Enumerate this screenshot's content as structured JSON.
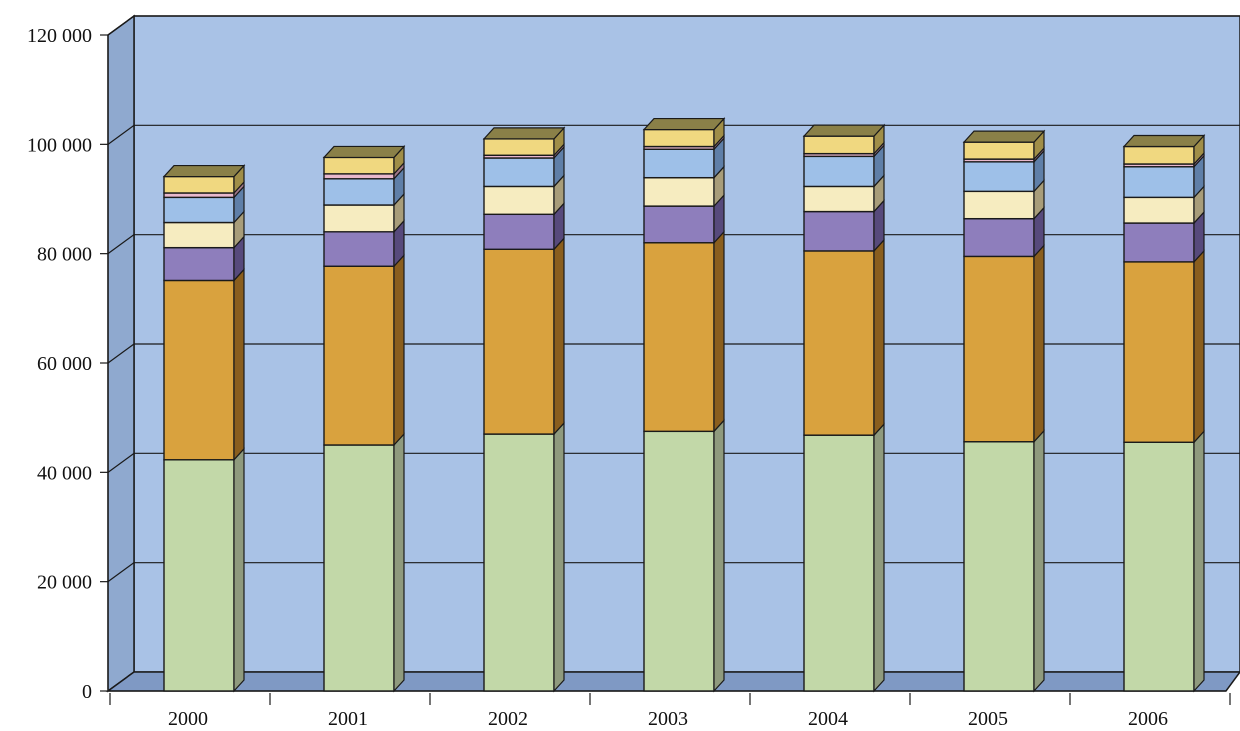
{
  "chart_data": {
    "type": "bar",
    "stacked": true,
    "three_d": true,
    "categories": [
      "2000",
      "2001",
      "2002",
      "2003",
      "2004",
      "2005",
      "2006"
    ],
    "ylim": [
      0,
      120000
    ],
    "yticks": [
      0,
      20000,
      40000,
      60000,
      80000,
      100000,
      120000
    ],
    "ytick_labels": [
      "0",
      "20 000",
      "40 000",
      "60 000",
      "80 000",
      "100 000",
      "120 000"
    ],
    "grid": true,
    "series": [
      {
        "color": "#c2d8a8",
        "side_color": "#8f9a7e",
        "values": [
          42300,
          45000,
          47000,
          47500,
          46800,
          45600,
          45500
        ]
      },
      {
        "color": "#d9a23e",
        "side_color": "#8a5e1e",
        "values": [
          32800,
          32700,
          33800,
          34500,
          33700,
          33900,
          33000
        ]
      },
      {
        "color": "#8e7ebc",
        "side_color": "#574a7c",
        "values": [
          6000,
          6300,
          6400,
          6700,
          7200,
          6900,
          7100
        ]
      },
      {
        "color": "#f6ecc0",
        "side_color": "#a89d7a",
        "values": [
          4600,
          4900,
          5100,
          5200,
          4600,
          5000,
          4700
        ]
      },
      {
        "color": "#9ec0e8",
        "side_color": "#5f7fa8",
        "values": [
          4600,
          4800,
          5200,
          5200,
          5500,
          5400,
          5600
        ]
      },
      {
        "color": "#e8b8cc",
        "side_color": "#a07888",
        "values": [
          800,
          900,
          500,
          500,
          500,
          500,
          500
        ]
      },
      {
        "color": "#f0d880",
        "side_color": "#a08e48",
        "values": [
          3000,
          3000,
          3000,
          3100,
          3200,
          3100,
          3200
        ]
      }
    ]
  }
}
